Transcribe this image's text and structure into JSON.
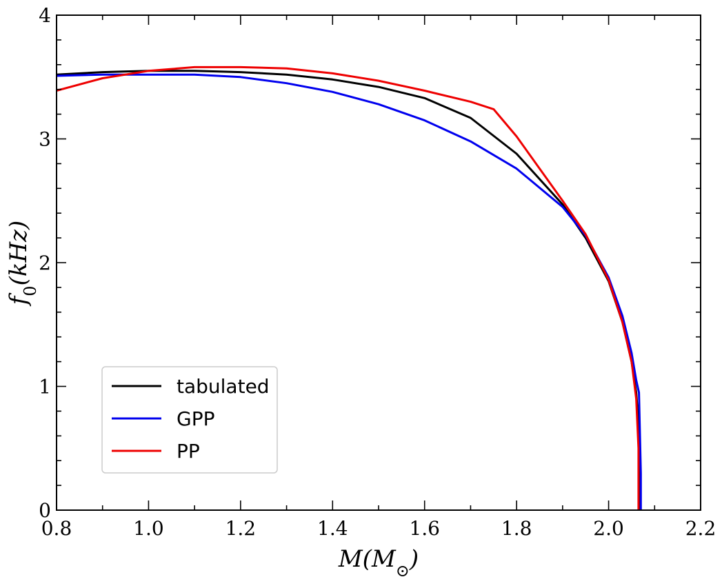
{
  "chart_data": {
    "type": "line",
    "title": "",
    "xlabel": "M(M_⊙)",
    "ylabel": "f_0(kHz)",
    "xlim": [
      0.8,
      2.2
    ],
    "ylim": [
      0,
      4
    ],
    "xticks": [
      0.8,
      1.0,
      1.2,
      1.4,
      1.6,
      1.8,
      2.0,
      2.2
    ],
    "xtick_labels": [
      "0.8",
      "1.0",
      "1.2",
      "1.4",
      "1.6",
      "1.8",
      "2.0",
      "2.2"
    ],
    "yticks": [
      0,
      1,
      2,
      3,
      4
    ],
    "ytick_labels": [
      "0",
      "1",
      "2",
      "3",
      "4"
    ],
    "grid": false,
    "legend_position": "lower-left",
    "series": [
      {
        "name": "tabulated",
        "color": "#000000",
        "x": [
          0.8,
          0.9,
          1.0,
          1.1,
          1.2,
          1.3,
          1.4,
          1.5,
          1.6,
          1.7,
          1.8,
          1.9,
          1.95,
          2.0,
          2.03,
          2.05,
          2.06,
          2.065,
          2.068,
          2.068
        ],
        "y": [
          3.52,
          3.54,
          3.55,
          3.55,
          3.54,
          3.52,
          3.48,
          3.42,
          3.33,
          3.17,
          2.88,
          2.47,
          2.2,
          1.85,
          1.52,
          1.2,
          0.95,
          0.7,
          0.3,
          0.0
        ]
      },
      {
        "name": "GPP",
        "color": "#0000ee",
        "x": [
          0.8,
          0.9,
          1.0,
          1.1,
          1.2,
          1.3,
          1.4,
          1.5,
          1.6,
          1.7,
          1.8,
          1.9,
          1.95,
          2.0,
          2.03,
          2.05,
          2.06,
          2.066,
          2.07,
          2.07
        ],
        "y": [
          3.51,
          3.52,
          3.52,
          3.52,
          3.5,
          3.45,
          3.38,
          3.28,
          3.15,
          2.98,
          2.76,
          2.45,
          2.22,
          1.88,
          1.57,
          1.27,
          1.05,
          0.95,
          0.3,
          0.0
        ]
      },
      {
        "name": "PP",
        "color": "#ee0000",
        "x": [
          0.8,
          0.9,
          1.0,
          1.1,
          1.15,
          1.2,
          1.3,
          1.4,
          1.5,
          1.6,
          1.7,
          1.75,
          1.8,
          1.85,
          1.9,
          1.95,
          2.0,
          2.03,
          2.05,
          2.06,
          2.065,
          2.065
        ],
        "y": [
          3.39,
          3.49,
          3.55,
          3.58,
          3.58,
          3.58,
          3.57,
          3.53,
          3.47,
          3.39,
          3.3,
          3.24,
          3.02,
          2.76,
          2.5,
          2.23,
          1.86,
          1.52,
          1.2,
          0.9,
          0.5,
          0.0
        ]
      }
    ]
  }
}
